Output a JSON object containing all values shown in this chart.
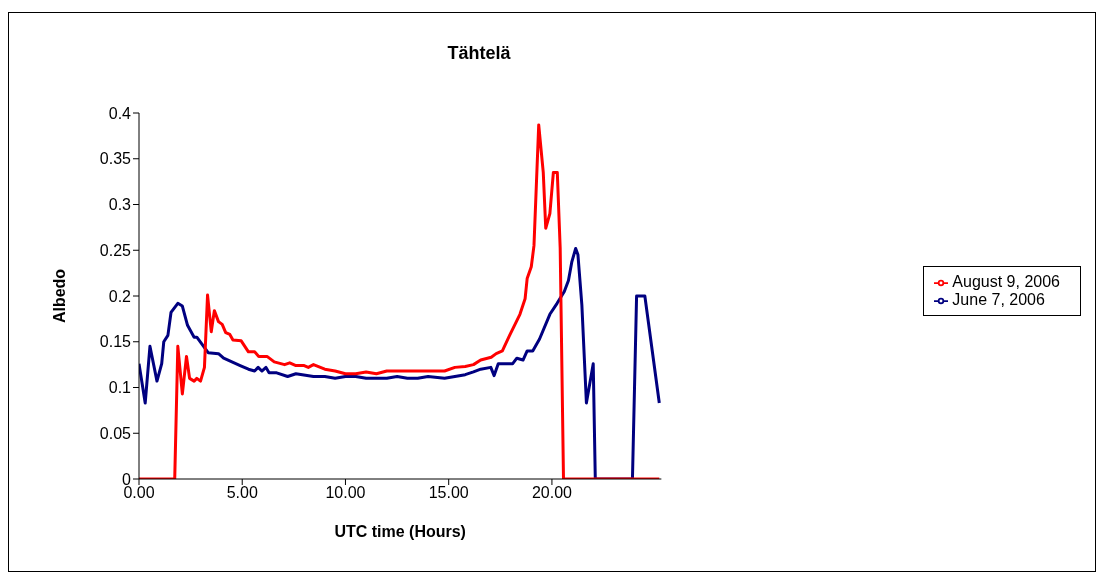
{
  "chart_data": {
    "type": "line",
    "title": "Tähtelä",
    "xlabel": "UTC time (Hours)",
    "ylabel": "Albedo",
    "xlim": [
      0,
      25.3
    ],
    "xticks": [
      {
        "value": 0,
        "label": "0.00"
      },
      {
        "value": 5,
        "label": "5.00"
      },
      {
        "value": 10,
        "label": "10.00"
      },
      {
        "value": 15,
        "label": "15.00"
      },
      {
        "value": 20,
        "label": "20.00"
      }
    ],
    "ylim": [
      0,
      0.4
    ],
    "yticks": [
      0,
      0.05,
      0.1,
      0.15,
      0.2,
      0.25,
      0.3,
      0.35,
      0.4
    ],
    "grid": false,
    "legend": "right",
    "marker": "none",
    "line_style": "solid",
    "series": [
      {
        "name": "June 7, 2006",
        "color": "#000080",
        "x": [
          0,
          0.3,
          0.53,
          0.87,
          1.1,
          1.2,
          1.4,
          1.55,
          1.88,
          2.1,
          2.35,
          2.67,
          2.8,
          3.35,
          3.85,
          4.1,
          4.9,
          5.3,
          5.6,
          5.77,
          5.95,
          6.15,
          6.3,
          6.67,
          7.2,
          7.6,
          8.45,
          9,
          9.5,
          10,
          10.5,
          11,
          11.5,
          12,
          12.5,
          13,
          13.5,
          14,
          14.8,
          15.3,
          15.8,
          16.2,
          16.55,
          17.04,
          17.2,
          17.4,
          18.1,
          18.3,
          18.6,
          18.8,
          19.07,
          19.4,
          19.9,
          20.25,
          20.6,
          20.8,
          20.96,
          21.15,
          21.26,
          21.45,
          21.67,
          22.0,
          22.1,
          23.9,
          24.1,
          24.5,
          25.2
        ],
        "values": [
          0.126,
          0.083,
          0.145,
          0.107,
          0.126,
          0.15,
          0.157,
          0.182,
          0.192,
          0.189,
          0.168,
          0.155,
          0.155,
          0.138,
          0.137,
          0.132,
          0.124,
          0.12,
          0.118,
          0.122,
          0.118,
          0.122,
          0.116,
          0.116,
          0.112,
          0.115,
          0.112,
          0.112,
          0.11,
          0.112,
          0.112,
          0.11,
          0.11,
          0.11,
          0.112,
          0.11,
          0.11,
          0.112,
          0.11,
          0.112,
          0.114,
          0.117,
          0.12,
          0.122,
          0.113,
          0.126,
          0.126,
          0.132,
          0.13,
          0.14,
          0.14,
          0.153,
          0.18,
          0.192,
          0.205,
          0.217,
          0.237,
          0.252,
          0.245,
          0.19,
          0.083,
          0.126,
          0,
          0,
          0.2,
          0.2,
          0.083
        ]
      },
      {
        "name": "August 9, 2006",
        "color": "#ff0000",
        "x": [
          0,
          1.73,
          1.88,
          2.1,
          2.3,
          2.45,
          2.67,
          2.8,
          2.98,
          3.17,
          3.32,
          3.5,
          3.65,
          3.85,
          4.03,
          4.2,
          4.4,
          4.55,
          4.95,
          5.3,
          5.6,
          5.8,
          6.2,
          6.55,
          7.05,
          7.3,
          7.6,
          8.0,
          8.2,
          8.45,
          9,
          9.5,
          10,
          10.5,
          11,
          11.5,
          12,
          12.5,
          13,
          13.5,
          14,
          14.8,
          15.3,
          15.8,
          16.2,
          16.55,
          17.06,
          17.3,
          17.6,
          17.95,
          18.45,
          18.7,
          18.8,
          19.0,
          19.13,
          19.36,
          19.58,
          19.7,
          19.9,
          20.07,
          20.26,
          20.4,
          20.56,
          25.2
        ],
        "values": [
          0,
          0,
          0.145,
          0.093,
          0.134,
          0.11,
          0.107,
          0.11,
          0.107,
          0.122,
          0.201,
          0.161,
          0.184,
          0.172,
          0.169,
          0.16,
          0.158,
          0.152,
          0.151,
          0.139,
          0.139,
          0.134,
          0.134,
          0.128,
          0.125,
          0.127,
          0.124,
          0.124,
          0.122,
          0.125,
          0.12,
          0.118,
          0.115,
          0.115,
          0.117,
          0.115,
          0.118,
          0.118,
          0.118,
          0.118,
          0.118,
          0.118,
          0.122,
          0.123,
          0.125,
          0.13,
          0.133,
          0.137,
          0.14,
          0.157,
          0.18,
          0.197,
          0.219,
          0.232,
          0.255,
          0.387,
          0.335,
          0.274,
          0.29,
          0.335,
          0.335,
          0.252,
          0,
          0
        ]
      }
    ]
  }
}
